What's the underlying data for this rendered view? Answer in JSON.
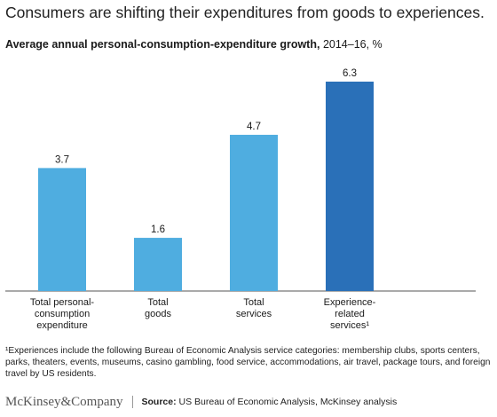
{
  "headline": "Consumers are shifting their expenditures from goods to experiences.",
  "chart_data": {
    "type": "bar",
    "title": "Average annual personal-consumption-expenditure growth,",
    "subtitle": "2014–16, %",
    "categories": [
      [
        "Total personal-",
        "consumption",
        "expenditure"
      ],
      [
        "Total",
        "goods"
      ],
      [
        "Total",
        "services"
      ],
      [
        "Experience-",
        "related",
        "services¹"
      ]
    ],
    "values": [
      3.7,
      1.6,
      4.7,
      6.3
    ],
    "ylim": [
      0,
      6.3
    ],
    "bar_colors": [
      "#4fade0",
      "#4fade0",
      "#4fade0",
      "#2a70b8"
    ],
    "grid": false
  },
  "footnote": "¹Experiences include the following Bureau of Economic Analysis service categories: membership clubs, sports centers, parks, theaters, events, museums, casino gambling, food service, accommodations, air travel, package tours, and foreign travel by US residents.",
  "footer": {
    "logo": "McKinsey&Company",
    "source_label": "Source:",
    "source_text": "US Bureau of Economic Analysis, McKinsey analysis"
  }
}
